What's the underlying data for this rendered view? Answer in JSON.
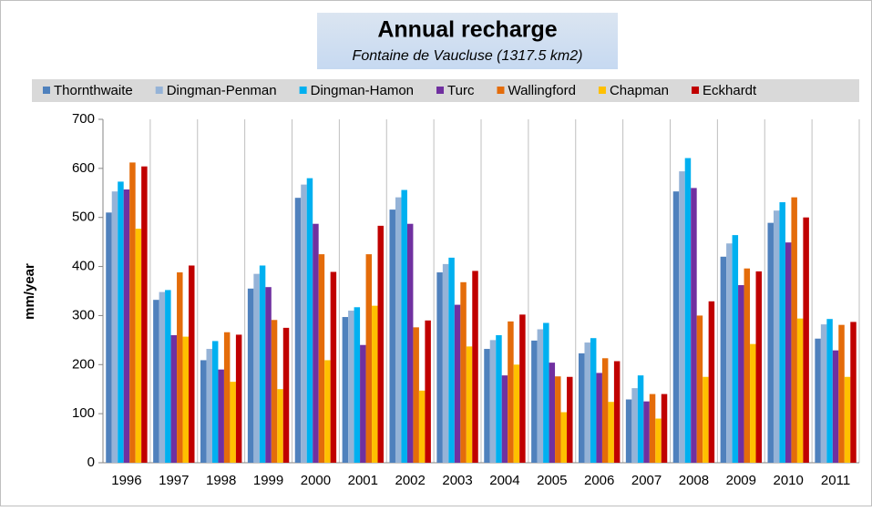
{
  "chart_data": {
    "type": "bar",
    "title": "Annual recharge",
    "subtitle": "Fontaine de Vaucluse (1317.5 km2)",
    "y_label": "mm/year",
    "categories": [
      "1996",
      "1997",
      "1998",
      "1999",
      "2000",
      "2001",
      "2002",
      "2003",
      "2004",
      "2005",
      "2006",
      "2007",
      "2008",
      "2009",
      "2010",
      "2011"
    ],
    "series": [
      {
        "name": "Thornthwaite",
        "color": "#4f81bd",
        "values": [
          510,
          332,
          209,
          355,
          540,
          297,
          516,
          388,
          232,
          249,
          223,
          129,
          553,
          420,
          489,
          253
        ]
      },
      {
        "name": "Dingman-Penman",
        "color": "#95b3d7",
        "values": [
          553,
          348,
          232,
          385,
          567,
          310,
          541,
          405,
          250,
          272,
          245,
          152,
          594,
          447,
          514,
          282
        ]
      },
      {
        "name": "Dingman-Hamon",
        "color": "#00b0f0",
        "values": [
          573,
          352,
          248,
          402,
          580,
          317,
          556,
          418,
          260,
          285,
          254,
          178,
          621,
          464,
          531,
          293
        ]
      },
      {
        "name": "Turc",
        "color": "#7030a0",
        "values": [
          557,
          260,
          190,
          358,
          487,
          240,
          487,
          322,
          178,
          204,
          183,
          125,
          560,
          362,
          449,
          229
        ]
      },
      {
        "name": "Wallingford",
        "color": "#e46c0a",
        "values": [
          612,
          388,
          266,
          291,
          425,
          425,
          276,
          368,
          288,
          176,
          213,
          140,
          300,
          396,
          541,
          281
        ]
      },
      {
        "name": "Chapman",
        "color": "#ffc000",
        "values": [
          477,
          257,
          165,
          150,
          209,
          320,
          147,
          237,
          200,
          103,
          124,
          90,
          175,
          242,
          294,
          175
        ]
      },
      {
        "name": "Eckhardt",
        "color": "#c00000",
        "values": [
          604,
          402,
          261,
          275,
          389,
          483,
          290,
          391,
          302,
          175,
          207,
          140,
          329,
          390,
          500,
          287
        ]
      }
    ],
    "ylim": [
      0,
      700
    ],
    "yticks": [
      0,
      100,
      200,
      300,
      400,
      500,
      600,
      700
    ],
    "grid": true,
    "legend": "top"
  }
}
